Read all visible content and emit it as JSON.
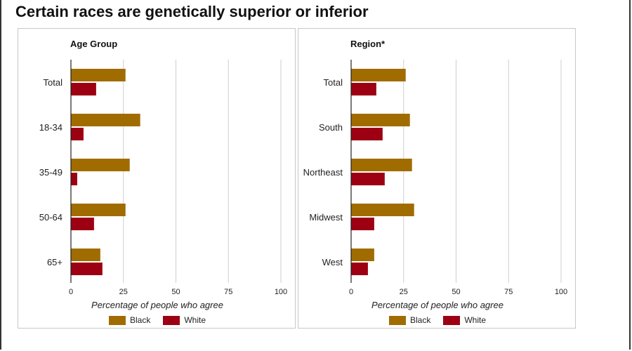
{
  "title": "Certain races are genetically superior or inferior",
  "colors": {
    "Black": "#a06c00",
    "White": "#9c0012"
  },
  "chart_data": [
    {
      "type": "bar",
      "orientation": "horizontal",
      "title": "Age Group",
      "categories": [
        "Total",
        "18-34",
        "35-49",
        "50-64",
        "65+"
      ],
      "series": [
        {
          "name": "Black",
          "values": [
            26,
            33,
            28,
            26,
            14
          ]
        },
        {
          "name": "White",
          "values": [
            12,
            6,
            3,
            11,
            15
          ]
        }
      ],
      "xlabel": "Percentage of people who agree",
      "xlim": [
        0,
        100
      ],
      "xticks": [
        0,
        25,
        50,
        75,
        100
      ],
      "grid": true,
      "legend": [
        "Black",
        "White"
      ],
      "legend_position": "bottom"
    },
    {
      "type": "bar",
      "orientation": "horizontal",
      "title": "Region*",
      "categories": [
        "Total",
        "South",
        "Northeast",
        "Midwest",
        "West"
      ],
      "series": [
        {
          "name": "Black",
          "values": [
            26,
            28,
            29,
            30,
            11
          ]
        },
        {
          "name": "White",
          "values": [
            12,
            15,
            16,
            11,
            8
          ]
        }
      ],
      "xlabel": "Percentage of people who agree",
      "xlim": [
        0,
        100
      ],
      "xticks": [
        0,
        25,
        50,
        75,
        100
      ],
      "grid": true,
      "legend": [
        "Black",
        "White"
      ],
      "legend_position": "bottom"
    }
  ]
}
